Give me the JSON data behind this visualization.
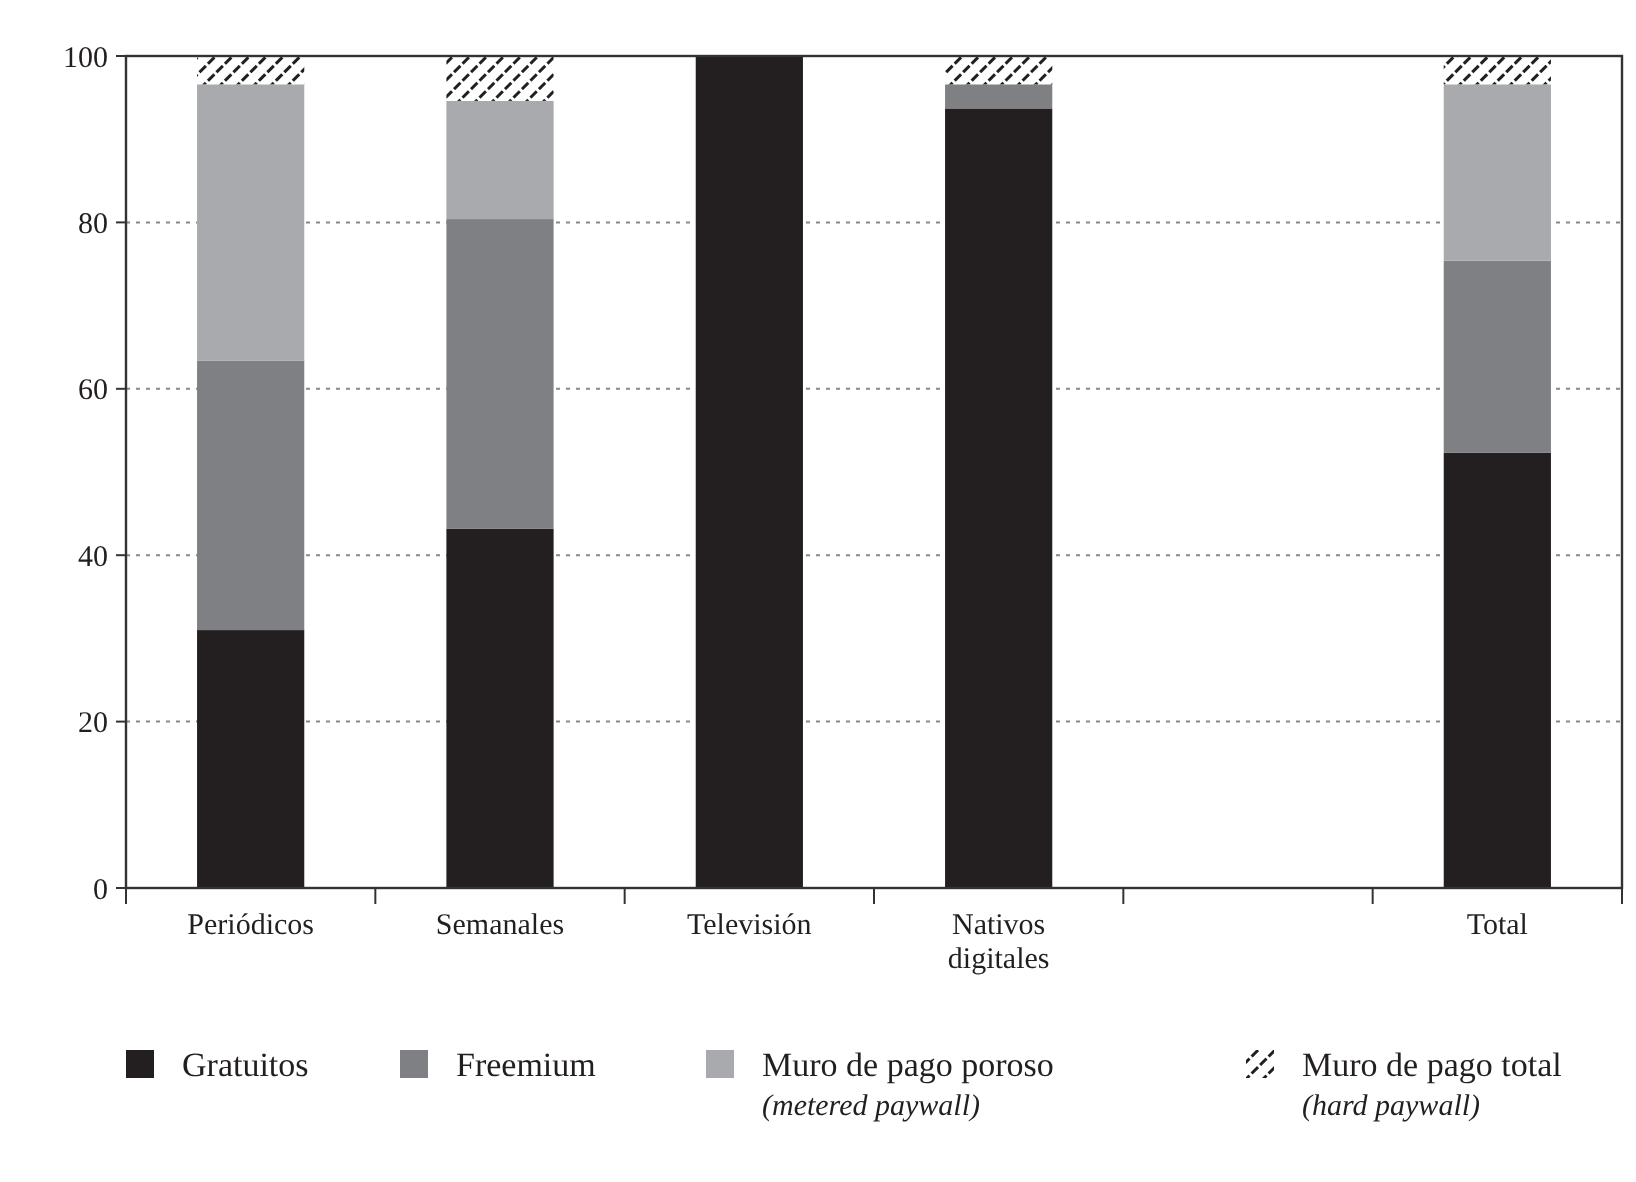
{
  "chart_data": {
    "type": "bar",
    "stacked": true,
    "categories": [
      "Periódicos",
      "Semanales",
      "Televisión",
      "Nativos digitales",
      null,
      "Total"
    ],
    "series": [
      {
        "name": "Gratuitos",
        "color": "#231f20",
        "values": [
          31,
          43.2,
          100,
          93.7,
          null,
          52.3
        ]
      },
      {
        "name": "Freemium",
        "color": "#7f8084",
        "values": [
          32.4,
          37.2,
          0,
          2.9,
          null,
          23.1
        ]
      },
      {
        "name": "Muro de pago poroso\n(metered paywall)",
        "color": "#a9aaad",
        "values": [
          33.2,
          14.2,
          0,
          0,
          null,
          21.2
        ]
      },
      {
        "name": "Muro de pago total\n(hard paywall)",
        "values": [
          3.4,
          5.4,
          0,
          3.4,
          null,
          3.4
        ]
      }
    ],
    "ylim": [
      0,
      100
    ],
    "yticks": [
      0,
      20,
      40,
      60,
      80,
      100
    ],
    "grid": "y",
    "legend": "bottom"
  }
}
